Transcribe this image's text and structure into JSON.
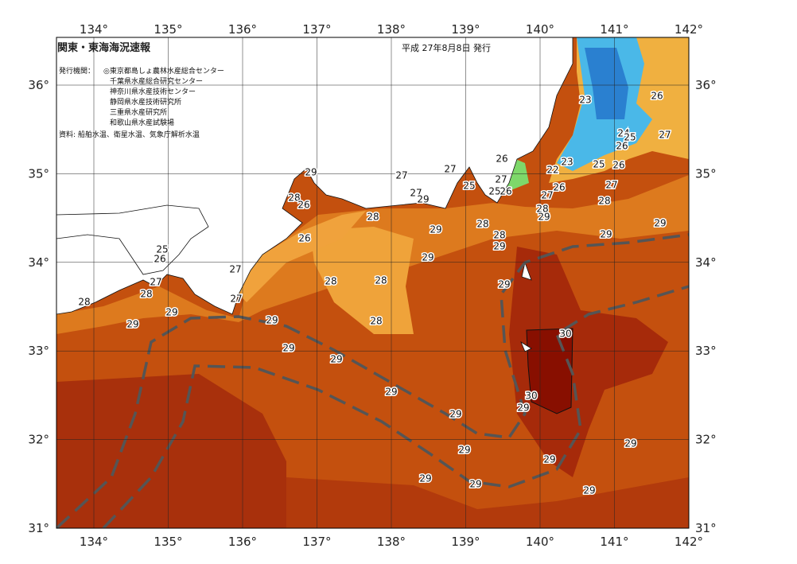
{
  "header": {
    "title": "関東・東海海況速報",
    "date": "平成 27年8月8日 発行",
    "issuer_label": "発行機関：",
    "issuers": [
      "◎東京都島しょ農林水産総合センター",
      "千葉県水産総合研究センター",
      "神奈川県水産技術センター",
      "静岡県水産技術研究所",
      "三重県水産研究所",
      "和歌山県水産試験場"
    ],
    "source": "資料: 船舶水温、衛星水温、気象庁解析水温"
  },
  "axes": {
    "lon_labels": [
      "134°",
      "135°",
      "136°",
      "137°",
      "138°",
      "139°",
      "140°",
      "141°",
      "142°"
    ],
    "lat_labels": [
      "31°",
      "32°",
      "33°",
      "34°",
      "35°",
      "36°"
    ]
  },
  "contour_labels": [
    "23",
    "26",
    "24",
    "25",
    "27",
    "26",
    "26",
    "23",
    "22",
    "25",
    "26",
    "29",
    "27",
    "27",
    "27",
    "25",
    "25",
    "26",
    "27",
    "29",
    "28",
    "26",
    "26",
    "27",
    "27",
    "28",
    "28",
    "28",
    "29",
    "29",
    "28",
    "28",
    "29",
    "29",
    "29",
    "26",
    "25",
    "26",
    "29",
    "27",
    "28",
    "28",
    "29",
    "27",
    "28",
    "28",
    "27",
    "29",
    "29",
    "29",
    "28",
    "30",
    "29",
    "29",
    "29",
    "30",
    "29",
    "29",
    "29",
    "29",
    "29",
    "29",
    "29",
    "29"
  ]
}
